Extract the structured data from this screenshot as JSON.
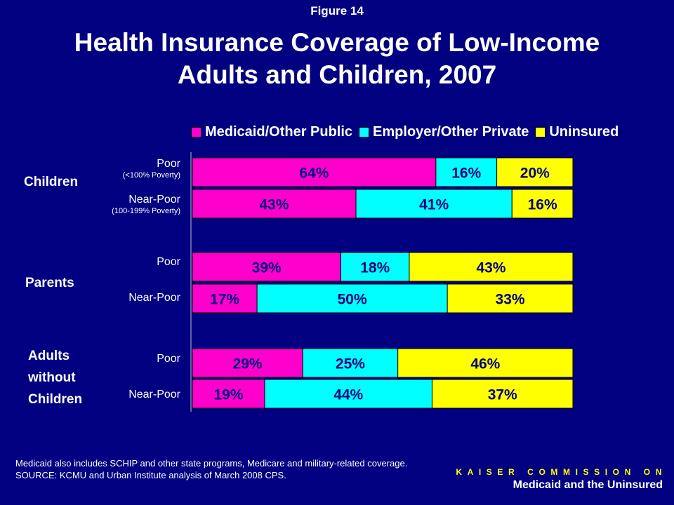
{
  "header": {
    "figure_label": "Figure 14",
    "title_line1": "Health Insurance Coverage of Low-Income",
    "title_line2": "Adults and Children, 2007"
  },
  "chart_data": {
    "type": "bar",
    "orientation": "horizontal",
    "stacked": true,
    "percent_stacked": true,
    "legend": [
      "Medicaid/Other Public",
      "Employer/Other Private",
      "Uninsured"
    ],
    "legend_position": "top",
    "colors": [
      "#ff00cc",
      "#00ffff",
      "#ffff00"
    ],
    "grid": false,
    "groups": [
      {
        "label": "Children",
        "rows": [
          {
            "label": "Poor",
            "sublabel": "(<100% Poverty)",
            "values": [
              64,
              16,
              20
            ],
            "value_labels": [
              "64%",
              "16%",
              "20%"
            ]
          },
          {
            "label": "Near-Poor",
            "sublabel": "(100-199% Poverty)",
            "values": [
              43,
              41,
              16
            ],
            "value_labels": [
              "43%",
              "41%",
              "16%"
            ]
          }
        ]
      },
      {
        "label": "Parents",
        "rows": [
          {
            "label": "Poor",
            "values": [
              39,
              18,
              43
            ],
            "value_labels": [
              "39%",
              "18%",
              "43%"
            ]
          },
          {
            "label": "Near-Poor",
            "values": [
              17,
              50,
              33
            ],
            "value_labels": [
              "17%",
              "50%",
              "33%"
            ]
          }
        ]
      },
      {
        "label_lines": [
          "Adults",
          "without",
          "Children"
        ],
        "rows": [
          {
            "label": "Poor",
            "values": [
              29,
              25,
              46
            ],
            "value_labels": [
              "29%",
              "25%",
              "46%"
            ]
          },
          {
            "label": "Near-Poor",
            "values": [
              19,
              44,
              37
            ],
            "value_labels": [
              "19%",
              "44%",
              "37%"
            ]
          }
        ]
      }
    ]
  },
  "footer": {
    "note": "Medicaid also includes SCHIP and other state programs, Medicare and military-related coverage.",
    "source": "SOURCE: KCMU and Urban Institute analysis of March 2008 CPS.",
    "org_top": "KAISER COMMISSION ON",
    "org_bottom": "Medicaid and the Uninsured"
  }
}
